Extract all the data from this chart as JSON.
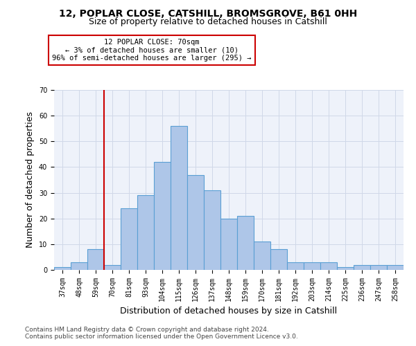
{
  "title1": "12, POPLAR CLOSE, CATSHILL, BROMSGROVE, B61 0HH",
  "title2": "Size of property relative to detached houses in Catshill",
  "xlabel": "Distribution of detached houses by size in Catshill",
  "ylabel": "Number of detached properties",
  "categories": [
    "37sqm",
    "48sqm",
    "59sqm",
    "70sqm",
    "81sqm",
    "93sqm",
    "104sqm",
    "115sqm",
    "126sqm",
    "137sqm",
    "148sqm",
    "159sqm",
    "170sqm",
    "181sqm",
    "192sqm",
    "203sqm",
    "214sqm",
    "225sqm",
    "236sqm",
    "247sqm",
    "258sqm"
  ],
  "values": [
    1,
    3,
    8,
    2,
    24,
    29,
    42,
    56,
    37,
    31,
    20,
    21,
    11,
    8,
    3,
    3,
    3,
    1,
    2,
    2,
    2
  ],
  "bar_color": "#aec6e8",
  "bar_edge_color": "#5a9fd4",
  "vline_x": 3.5,
  "vline_color": "#cc0000",
  "annotation_text": "12 POPLAR CLOSE: 70sqm\n← 3% of detached houses are smaller (10)\n96% of semi-detached houses are larger (295) →",
  "annotation_box_color": "#cc0000",
  "ylim": [
    0,
    70
  ],
  "yticks": [
    0,
    10,
    20,
    30,
    40,
    50,
    60,
    70
  ],
  "grid_color": "#d0d8e8",
  "background_color": "#eef2fa",
  "footer1": "Contains HM Land Registry data © Crown copyright and database right 2024.",
  "footer2": "Contains public sector information licensed under the Open Government Licence v3.0.",
  "title_fontsize": 10,
  "subtitle_fontsize": 9,
  "axis_label_fontsize": 9,
  "tick_fontsize": 7,
  "footer_fontsize": 6.5,
  "annot_fontsize": 7.5
}
